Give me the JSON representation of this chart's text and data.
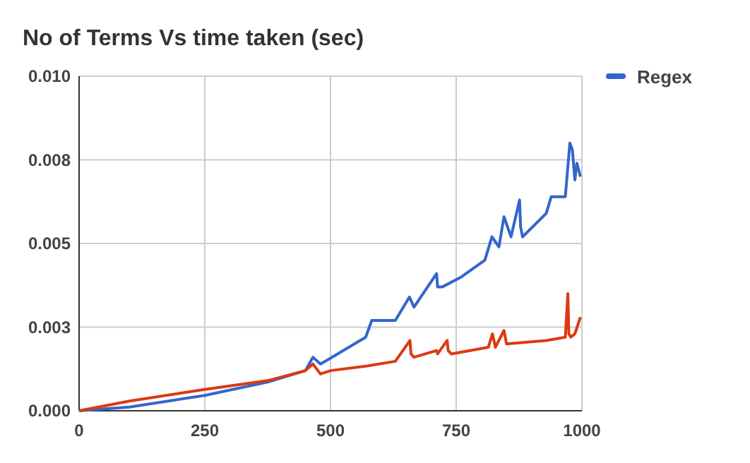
{
  "chart_data": {
    "type": "line",
    "title": "No of Terms Vs time taken (sec)",
    "xlim": [
      0,
      1000
    ],
    "xticks": [
      0,
      250,
      500,
      750,
      1000
    ],
    "ylim": [
      0,
      0.01
    ],
    "yticks": [
      {
        "value": 0,
        "label": "0.000"
      },
      {
        "value": 0.0025,
        "label": "0.003"
      },
      {
        "value": 0.005,
        "label": "0.005"
      },
      {
        "value": 0.0075,
        "label": "0.008"
      },
      {
        "value": 0.01,
        "label": "0.010"
      }
    ],
    "grid": true,
    "legend": "top right",
    "marker": "none",
    "line_style": "solid",
    "series": [
      {
        "name": "Regex",
        "color": "#3366cc",
        "x": [
          0,
          100,
          250,
          375,
          450,
          465,
          480,
          500,
          570,
          582,
          629,
          657,
          666,
          711,
          713,
          722,
          760,
          807,
          821,
          835,
          845,
          859,
          876,
          878,
          882,
          929,
          939,
          967,
          976,
          981,
          986,
          990,
          997
        ],
        "values": [
          0,
          0.00011,
          0.00046,
          0.00086,
          0.0012,
          0.0016,
          0.0014,
          0.00157,
          0.0022,
          0.0027,
          0.0027,
          0.0034,
          0.0031,
          0.0041,
          0.0037,
          0.0037,
          0.004,
          0.0045,
          0.0052,
          0.0049,
          0.0058,
          0.0052,
          0.0063,
          0.0055,
          0.0052,
          0.0059,
          0.0064,
          0.0064,
          0.008,
          0.0078,
          0.0069,
          0.0074,
          0.007
        ]
      },
      {
        "color": "#dc3912",
        "x": [
          0,
          100,
          250,
          375,
          450,
          465,
          480,
          500,
          573,
          629,
          658,
          660,
          666,
          711,
          713,
          732,
          734,
          740,
          814,
          822,
          828,
          845,
          850,
          929,
          967,
          972,
          974,
          978,
          986,
          997
        ],
        "values": [
          0,
          0.00029,
          0.00064,
          0.0009,
          0.0012,
          0.0014,
          0.0011,
          0.0012,
          0.00134,
          0.00148,
          0.0021,
          0.0017,
          0.0016,
          0.0018,
          0.0017,
          0.0021,
          0.0018,
          0.0017,
          0.0019,
          0.0023,
          0.0019,
          0.0024,
          0.002,
          0.0021,
          0.0022,
          0.0035,
          0.0023,
          0.0022,
          0.0023,
          0.0028
        ]
      }
    ]
  }
}
